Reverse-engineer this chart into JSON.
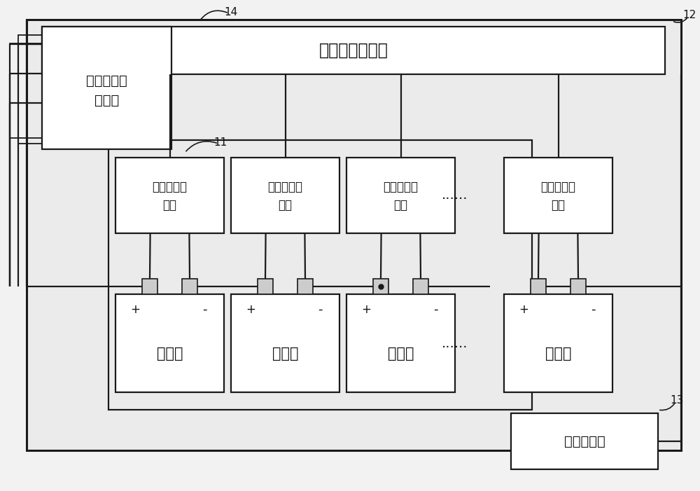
{
  "bg_color": "#f2f2f2",
  "box_facecolor": "#ffffff",
  "box_edgecolor": "#1a1a1a",
  "line_color": "#1a1a1a",
  "font_color": "#111111",
  "monitor_center": "蓄电池监测中心",
  "ripple_module_line1": "纹波信号注",
  "ripple_module_line2": "入模块",
  "terminal_line1": "蓄电池监测",
  "terminal_line2": "终端",
  "battery": "蓄电池",
  "current_sensor": "电流传感器",
  "dots": "......",
  "label_11": "11",
  "label_12": "12",
  "label_13": "13",
  "label_14": "14",
  "plus": "+",
  "minus": "-",
  "lw": 1.6,
  "fig_w": 10.0,
  "fig_h": 7.01
}
